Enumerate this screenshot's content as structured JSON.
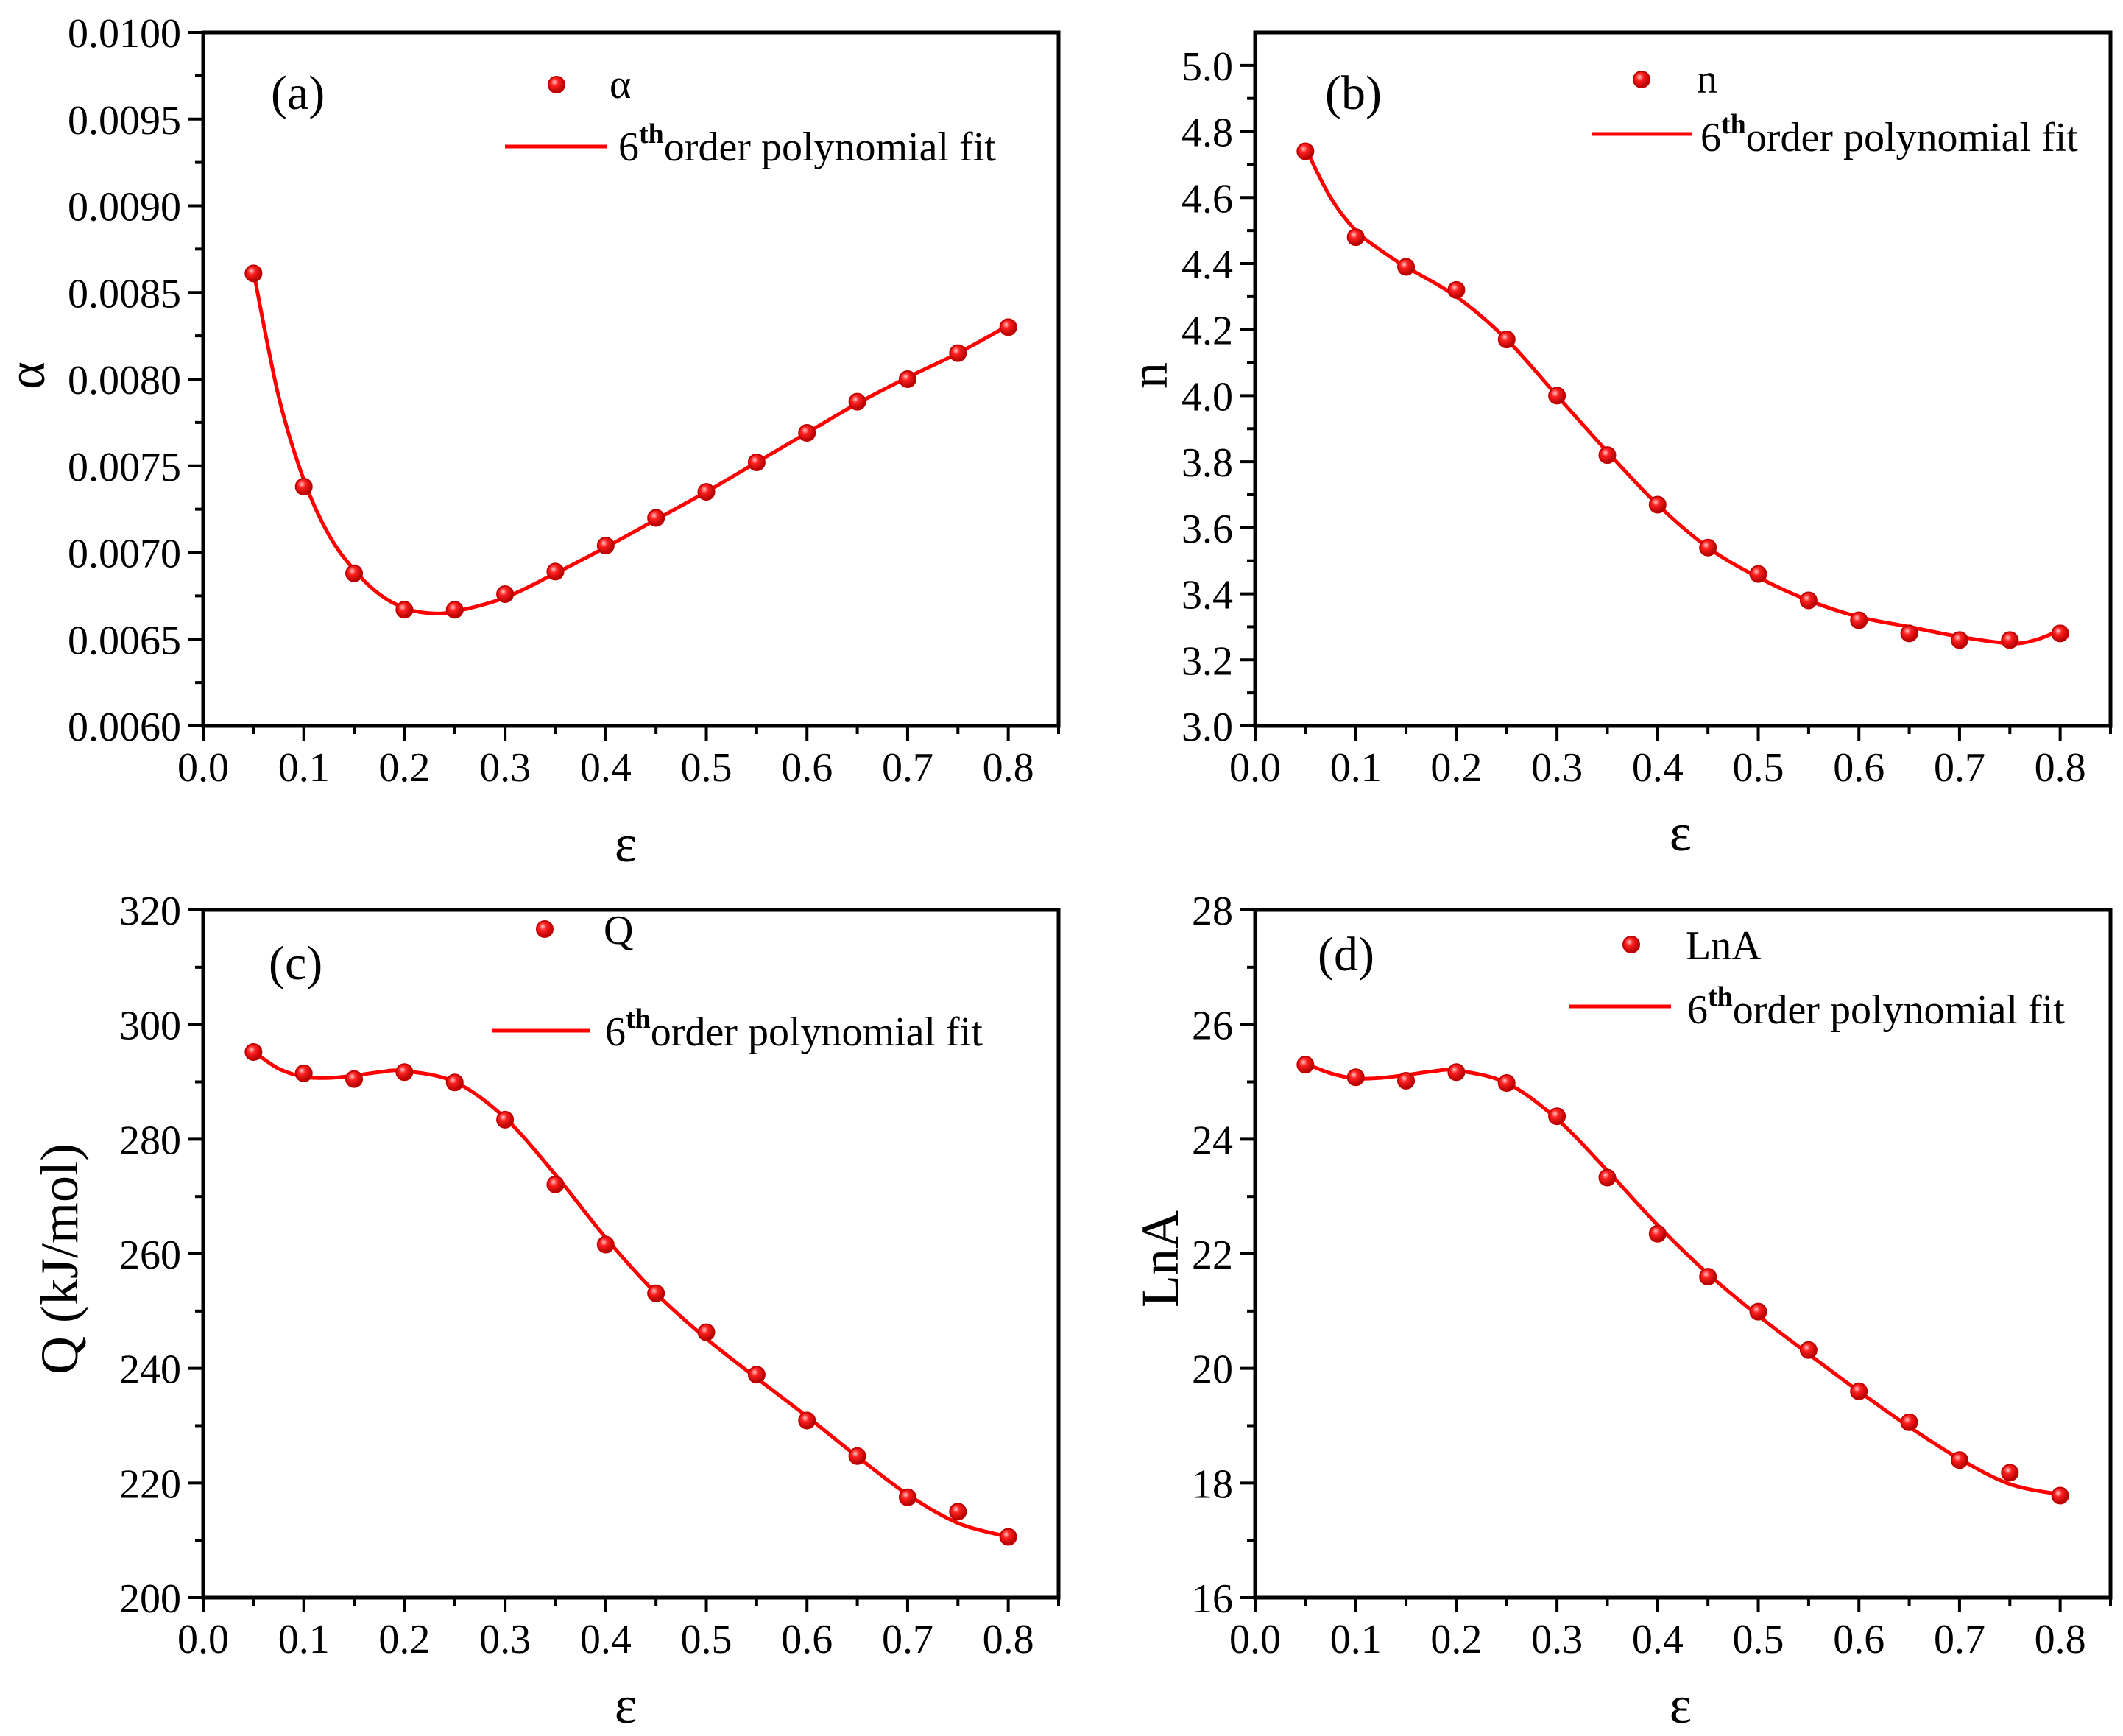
{
  "figure": {
    "background": "#ffffff",
    "series_color": "#ff0000",
    "marker_color": "#e60000"
  },
  "chart_data": [
    {
      "id": "a",
      "type": "scatter+line",
      "panel_label": "(a)",
      "xlabel": "ε",
      "ylabel": "α",
      "xlim": [
        0.0,
        0.85
      ],
      "ylim": [
        0.006,
        0.01
      ],
      "x_ticks": [
        "0.0",
        "0.1",
        "0.2",
        "0.3",
        "0.4",
        "0.5",
        "0.6",
        "0.7",
        "0.8"
      ],
      "y_tick_values": [
        0.006,
        0.0065,
        0.007,
        0.0075,
        0.008,
        0.0085,
        0.009,
        0.0095,
        0.01
      ],
      "y_ticks": [
        "0.0060",
        "0.0065",
        "0.0070",
        "0.0075",
        "0.0080",
        "0.0085",
        "0.0090",
        "0.0095",
        "0.0100"
      ],
      "legend": {
        "marker_label": "α",
        "fit_label_prefix": "6",
        "fit_label_sup": "th",
        "fit_label_rest": "order polynomial fit"
      },
      "x": [
        0.05,
        0.1,
        0.15,
        0.2,
        0.25,
        0.3,
        0.35,
        0.4,
        0.45,
        0.5,
        0.55,
        0.6,
        0.65,
        0.7,
        0.75,
        0.8
      ],
      "values": [
        0.00861,
        0.00738,
        0.00688,
        0.00667,
        0.00667,
        0.00676,
        0.00689,
        0.00704,
        0.0072,
        0.00735,
        0.00752,
        0.00769,
        0.00787,
        0.008,
        0.00815,
        0.0083
      ],
      "fit": [
        [
          0.05,
          0.00862
        ],
        [
          0.075,
          0.0079
        ],
        [
          0.1,
          0.00742
        ],
        [
          0.125,
          0.0071
        ],
        [
          0.15,
          0.0069
        ],
        [
          0.175,
          0.00676
        ],
        [
          0.2,
          0.00668
        ],
        [
          0.225,
          0.00665
        ],
        [
          0.25,
          0.00666
        ],
        [
          0.3,
          0.00674
        ],
        [
          0.35,
          0.00688
        ],
        [
          0.4,
          0.00703
        ],
        [
          0.45,
          0.00719
        ],
        [
          0.5,
          0.00735
        ],
        [
          0.55,
          0.00752
        ],
        [
          0.6,
          0.00769
        ],
        [
          0.65,
          0.00786
        ],
        [
          0.7,
          0.00801
        ],
        [
          0.75,
          0.00815
        ],
        [
          0.8,
          0.00831
        ]
      ]
    },
    {
      "id": "b",
      "type": "scatter+line",
      "panel_label": "(b)",
      "xlabel": "ε",
      "ylabel": "n",
      "xlim": [
        0.0,
        0.85
      ],
      "ylim": [
        3.0,
        5.1
      ],
      "x_ticks": [
        "0.0",
        "0.1",
        "0.2",
        "0.3",
        "0.4",
        "0.5",
        "0.6",
        "0.7",
        "0.8"
      ],
      "y_tick_values": [
        3.0,
        3.2,
        3.4,
        3.6,
        3.8,
        4.0,
        4.2,
        4.4,
        4.6,
        4.8,
        5.0
      ],
      "y_ticks": [
        "3.0",
        "3.2",
        "3.4",
        "3.6",
        "3.8",
        "4.0",
        "4.2",
        "4.4",
        "4.6",
        "4.8",
        "5.0"
      ],
      "legend": {
        "marker_label": "n",
        "fit_label_prefix": "6",
        "fit_label_sup": "th",
        "fit_label_rest": "order polynomial fit"
      },
      "x": [
        0.05,
        0.1,
        0.15,
        0.2,
        0.25,
        0.3,
        0.35,
        0.4,
        0.45,
        0.5,
        0.55,
        0.6,
        0.65,
        0.7,
        0.75,
        0.8
      ],
      "values": [
        4.74,
        4.48,
        4.39,
        4.32,
        4.17,
        4.0,
        3.82,
        3.67,
        3.54,
        3.46,
        3.38,
        3.32,
        3.28,
        3.26,
        3.26,
        3.28
      ],
      "fit": [
        [
          0.05,
          4.75
        ],
        [
          0.075,
          4.6
        ],
        [
          0.1,
          4.5
        ],
        [
          0.125,
          4.44
        ],
        [
          0.15,
          4.39
        ],
        [
          0.2,
          4.3
        ],
        [
          0.25,
          4.17
        ],
        [
          0.3,
          4.0
        ],
        [
          0.35,
          3.83
        ],
        [
          0.4,
          3.67
        ],
        [
          0.45,
          3.54
        ],
        [
          0.5,
          3.45
        ],
        [
          0.55,
          3.38
        ],
        [
          0.6,
          3.33
        ],
        [
          0.65,
          3.3
        ],
        [
          0.7,
          3.27
        ],
        [
          0.75,
          3.25
        ],
        [
          0.775,
          3.26
        ],
        [
          0.8,
          3.29
        ]
      ]
    },
    {
      "id": "c",
      "type": "scatter+line",
      "panel_label": "(c)",
      "xlabel": "ε",
      "ylabel": "Q (kJ/mol)",
      "xlim": [
        0.0,
        0.85
      ],
      "ylim": [
        200,
        320
      ],
      "x_ticks": [
        "0.0",
        "0.1",
        "0.2",
        "0.3",
        "0.4",
        "0.5",
        "0.6",
        "0.7",
        "0.8"
      ],
      "y_tick_values": [
        200,
        220,
        240,
        260,
        280,
        300,
        320
      ],
      "y_ticks": [
        "200",
        "220",
        "240",
        "260",
        "280",
        "300",
        "320"
      ],
      "legend": {
        "marker_label": "Q",
        "fit_label_prefix": "6",
        "fit_label_sup": "th",
        "fit_label_rest": "order polynomial fit"
      },
      "x": [
        0.05,
        0.1,
        0.15,
        0.2,
        0.25,
        0.3,
        0.35,
        0.4,
        0.45,
        0.5,
        0.55,
        0.6,
        0.65,
        0.7,
        0.75,
        0.8
      ],
      "values": [
        295.2,
        291.5,
        290.5,
        291.7,
        289.9,
        283.4,
        272.1,
        261.6,
        253.1,
        246.3,
        238.9,
        230.9,
        224.7,
        217.5,
        215.0,
        210.6
      ],
      "fit": [
        [
          0.05,
          295.3
        ],
        [
          0.075,
          292.3
        ],
        [
          0.1,
          290.9
        ],
        [
          0.125,
          290.7
        ],
        [
          0.15,
          291.1
        ],
        [
          0.175,
          291.7
        ],
        [
          0.2,
          291.9
        ],
        [
          0.25,
          290.0
        ],
        [
          0.3,
          283.7
        ],
        [
          0.35,
          273.8
        ],
        [
          0.4,
          262.8
        ],
        [
          0.45,
          253.1
        ],
        [
          0.5,
          245.2
        ],
        [
          0.55,
          238.3
        ],
        [
          0.6,
          231.6
        ],
        [
          0.65,
          224.6
        ],
        [
          0.7,
          218.0
        ],
        [
          0.75,
          213.0
        ],
        [
          0.8,
          210.6
        ]
      ]
    },
    {
      "id": "d",
      "type": "scatter+line",
      "panel_label": "(d)",
      "xlabel": "ε",
      "ylabel": "LnA",
      "xlim": [
        0.0,
        0.85
      ],
      "ylim": [
        16,
        28
      ],
      "x_ticks": [
        "0.0",
        "0.1",
        "0.2",
        "0.3",
        "0.4",
        "0.5",
        "0.6",
        "0.7",
        "0.8"
      ],
      "y_tick_values": [
        16,
        18,
        20,
        22,
        24,
        26,
        28
      ],
      "y_ticks": [
        "16",
        "18",
        "20",
        "22",
        "24",
        "26",
        "28"
      ],
      "legend": {
        "marker_label": "LnA",
        "fit_label_prefix": "6",
        "fit_label_sup": "th",
        "fit_label_rest": "order polynomial fit"
      },
      "x": [
        0.05,
        0.1,
        0.15,
        0.2,
        0.25,
        0.3,
        0.35,
        0.4,
        0.45,
        0.5,
        0.55,
        0.6,
        0.65,
        0.7,
        0.75,
        0.8
      ],
      "values": [
        25.3,
        25.08,
        25.02,
        25.17,
        24.98,
        24.4,
        23.33,
        22.35,
        21.6,
        20.99,
        20.32,
        19.6,
        19.06,
        18.4,
        18.18,
        17.78
      ],
      "fit": [
        [
          0.05,
          25.32
        ],
        [
          0.075,
          25.15
        ],
        [
          0.1,
          25.06
        ],
        [
          0.125,
          25.07
        ],
        [
          0.15,
          25.12
        ],
        [
          0.175,
          25.18
        ],
        [
          0.2,
          25.2
        ],
        [
          0.25,
          24.98
        ],
        [
          0.3,
          24.35
        ],
        [
          0.35,
          23.45
        ],
        [
          0.4,
          22.5
        ],
        [
          0.45,
          21.65
        ],
        [
          0.5,
          20.92
        ],
        [
          0.55,
          20.25
        ],
        [
          0.6,
          19.6
        ],
        [
          0.65,
          18.98
        ],
        [
          0.7,
          18.42
        ],
        [
          0.75,
          17.98
        ],
        [
          0.8,
          17.8
        ]
      ]
    }
  ]
}
